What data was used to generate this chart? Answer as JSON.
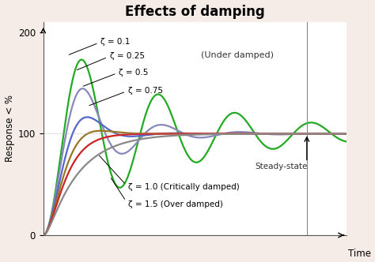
{
  "title": "Effects of damping",
  "xlabel": "Time",
  "ylabel": "Response < %",
  "ylim": [
    0,
    210
  ],
  "xlim": [
    0,
    10
  ],
  "yticks": [
    0,
    100,
    200
  ],
  "fig_bg_color": "#f5ece8",
  "plot_bg_color": "#ffffff",
  "under_damped_label": "(Under damped)",
  "steady_state_label": "Steady-state",
  "zeta_labels": [
    {
      "zeta": 0.1,
      "label": "ζ = 0.1",
      "color": "#22aa22",
      "lw": 1.6
    },
    {
      "zeta": 0.25,
      "label": "ζ = 0.25",
      "color": "#8888bb",
      "lw": 1.6
    },
    {
      "zeta": 0.5,
      "label": "ζ = 0.5",
      "color": "#5566cc",
      "lw": 1.6
    },
    {
      "zeta": 0.75,
      "label": "ζ = 0.75",
      "color": "#997722",
      "lw": 1.6
    },
    {
      "zeta": 1.0,
      "label": "ζ = 1.0 (Critically damped)",
      "color": "#cc2222",
      "lw": 1.6
    },
    {
      "zeta": 1.5,
      "label": "ζ = 1.5 (Over damped)",
      "color": "#888888",
      "lw": 1.6
    }
  ],
  "wn": 2.5
}
